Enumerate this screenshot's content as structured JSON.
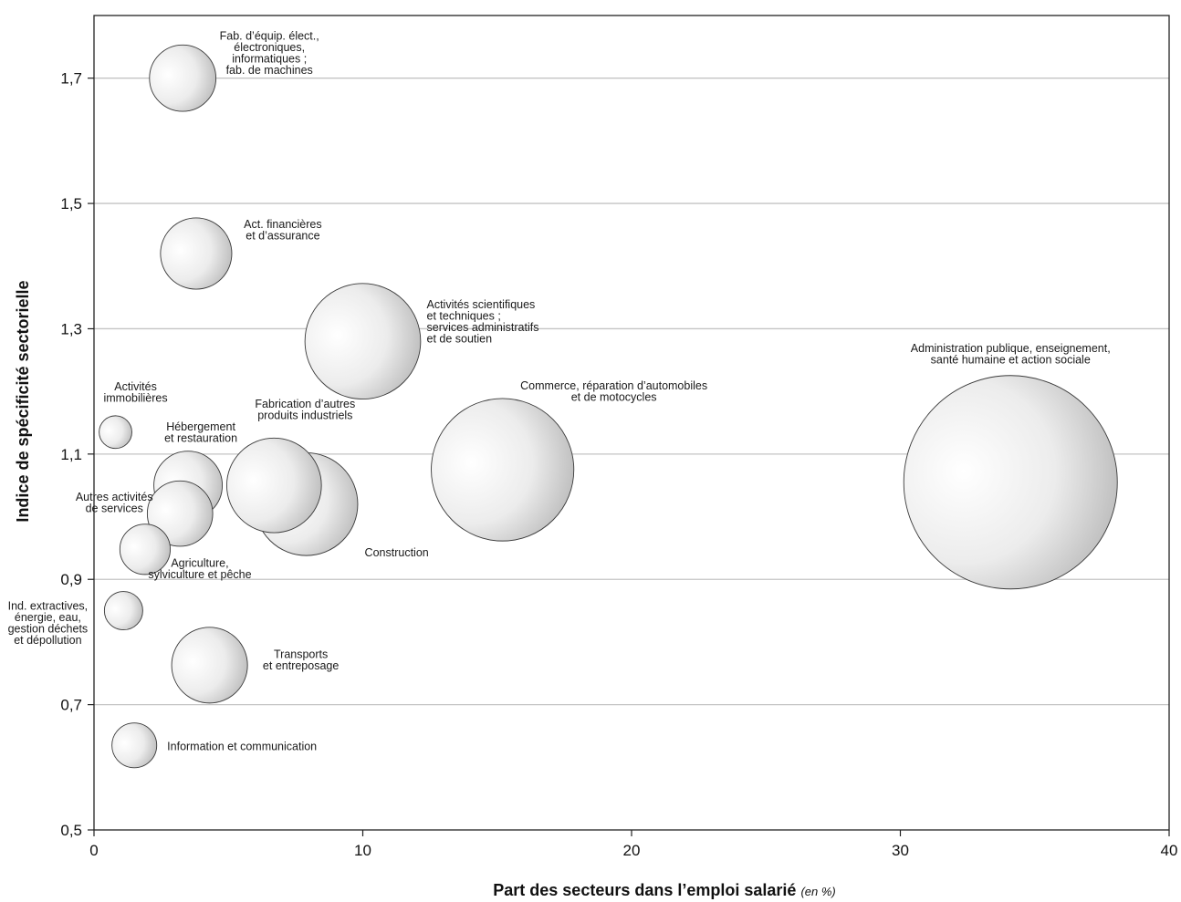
{
  "chart_data": {
    "type": "scatter",
    "subtype": "bubble",
    "xlabel": "Part des secteurs dans l’emploi salarié",
    "xlabel_unit": "(en %)",
    "ylabel": "Indice de spécificité sectorielle",
    "xlim": [
      0,
      40
    ],
    "ylim": [
      0.5,
      1.8
    ],
    "x_ticks": [
      0,
      10,
      20,
      30,
      40
    ],
    "x_tick_labels": [
      "0",
      "10",
      "20",
      "30",
      "40"
    ],
    "y_ticks": [
      0.5,
      0.7,
      0.9,
      1.1,
      1.3,
      1.5,
      1.7
    ],
    "y_tick_labels": [
      "0,5",
      "0,7",
      "0,9",
      "1,1",
      "1,3",
      "1,5",
      "1,7"
    ],
    "grid": "horizontal",
    "points": [
      {
        "x": 3.3,
        "y": 1.7,
        "size": 3.3,
        "label": [
          "Fab. d’équip. élect.,",
          "électroniques,",
          "informatiques ;",
          "fab. de machines"
        ]
      },
      {
        "x": 3.8,
        "y": 1.42,
        "size": 3.8,
        "label": [
          "Act. financières",
          "et d’assurance"
        ]
      },
      {
        "x": 10.0,
        "y": 1.28,
        "size": 10.0,
        "label": [
          "Activités scientifiques",
          "et techniques ;",
          "services administratifs",
          "et de soutien"
        ]
      },
      {
        "x": 34.1,
        "y": 1.055,
        "size": 34.1,
        "label": [
          "Administration publique, enseignement,",
          "santé humaine et action sociale"
        ]
      },
      {
        "x": 15.2,
        "y": 1.075,
        "size": 15.2,
        "label": [
          "Commerce, réparation d’automobiles",
          "et de motocycles"
        ]
      },
      {
        "x": 0.8,
        "y": 1.135,
        "size": 0.8,
        "label": [
          "Activités",
          "immobilières"
        ]
      },
      {
        "x": 3.5,
        "y": 1.05,
        "size": 3.5,
        "label": [
          "Hébergement",
          "et restauration"
        ]
      },
      {
        "x": 6.7,
        "y": 1.05,
        "size": 6.7,
        "label": [
          "Fabrication d’autres",
          "produits industriels"
        ]
      },
      {
        "x": 7.9,
        "y": 1.02,
        "size": 7.9,
        "label": [
          "Construction"
        ]
      },
      {
        "x": 3.2,
        "y": 1.005,
        "size": 3.2,
        "label": [
          "Autres activités",
          "de services"
        ]
      },
      {
        "x": 1.9,
        "y": 0.948,
        "size": 1.9,
        "label": [
          "Agriculture,",
          "sylviculture et pêche"
        ]
      },
      {
        "x": 1.1,
        "y": 0.85,
        "size": 1.1,
        "label": [
          "Ind. extractives,",
          "énergie, eau,",
          "gestion déchets",
          "et dépollution"
        ]
      },
      {
        "x": 4.3,
        "y": 0.763,
        "size": 4.3,
        "label": [
          "Transports",
          "et entreposage"
        ]
      },
      {
        "x": 1.5,
        "y": 0.635,
        "size": 1.5,
        "label": [
          "Information et communication"
        ]
      }
    ]
  }
}
